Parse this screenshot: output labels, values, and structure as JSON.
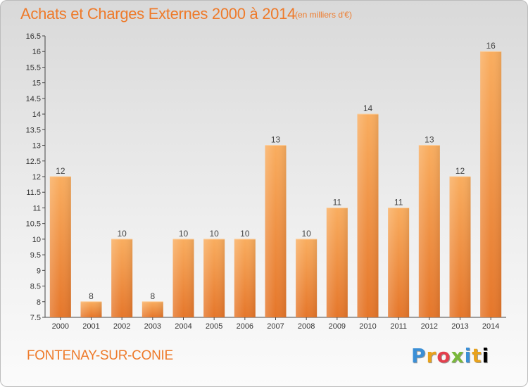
{
  "header": {
    "title": "Achats et Charges Externes 2000 à 2014",
    "subtitle": "(en milliers d'€)"
  },
  "footer": {
    "place": "FONTENAY-SUR-CONIE",
    "logo_letters": [
      "P",
      "r",
      "o",
      "x",
      "i",
      "t",
      "i"
    ]
  },
  "colors": {
    "accent": "#ee7a2a",
    "bar_light": "#f7a85a",
    "bar_dark": "#e8782a",
    "axis": "#444444"
  },
  "chart_data": {
    "type": "bar",
    "title": "Achats et Charges Externes 2000 à 2014",
    "subtitle": "(en milliers d'€)",
    "categories": [
      "2000",
      "2001",
      "2002",
      "2003",
      "2004",
      "2005",
      "2006",
      "2007",
      "2008",
      "2009",
      "2010",
      "2011",
      "2012",
      "2013",
      "2014"
    ],
    "values": [
      12,
      8,
      10,
      8,
      10,
      10,
      10,
      13,
      10,
      11,
      14,
      11,
      13,
      12,
      16
    ],
    "value_labels": [
      "12",
      "8",
      "10",
      "8",
      "10",
      "10",
      "10",
      "13",
      "10",
      "11",
      "14",
      "11",
      "13",
      "12",
      "16"
    ],
    "ylim": [
      7.5,
      16.5
    ],
    "yticks": [
      "7.5",
      "8",
      "8.5",
      "9",
      "9.5",
      "10",
      "10.5",
      "11",
      "11.5",
      "12",
      "12.5",
      "13",
      "13.5",
      "14",
      "14.5",
      "15",
      "15.5",
      "16",
      "16.5"
    ],
    "xlabel": "",
    "ylabel": "",
    "grid": false,
    "legend": "none"
  }
}
